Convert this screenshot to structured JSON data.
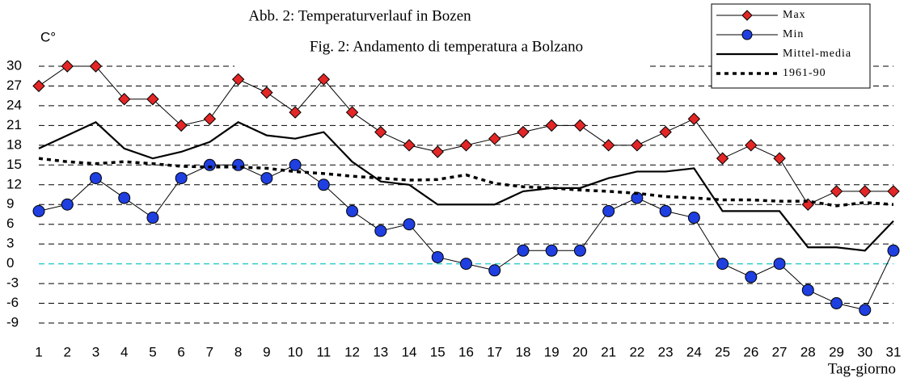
{
  "chart_data": {
    "type": "line",
    "title": "Abb. 2: Temperaturverlauf in Bozen",
    "subtitle": "Fig. 2: Andamento di temperatura a Bolzano",
    "y_label": "C°",
    "x_label": "Tag-giorno",
    "x": [
      1,
      2,
      3,
      4,
      5,
      6,
      7,
      8,
      9,
      10,
      11,
      12,
      13,
      14,
      15,
      16,
      17,
      18,
      19,
      20,
      21,
      22,
      23,
      24,
      25,
      26,
      27,
      28,
      29,
      30,
      31
    ],
    "xlim": [
      1,
      31
    ],
    "xticks": [
      1,
      2,
      3,
      4,
      5,
      6,
      7,
      8,
      9,
      10,
      11,
      12,
      13,
      14,
      15,
      16,
      17,
      18,
      19,
      20,
      21,
      22,
      23,
      24,
      25,
      26,
      27,
      28,
      29,
      30,
      31
    ],
    "ylim": [
      -9,
      30
    ],
    "yticks": [
      -9,
      -6,
      -3,
      0,
      3,
      6,
      9,
      12,
      15,
      18,
      21,
      24,
      27,
      30
    ],
    "grid": true,
    "grid_color": "#000000",
    "zero_line_color": "#33cccc",
    "legend": "top-right",
    "series": [
      {
        "name": "Max",
        "color": "#e32626",
        "line_color": "#000000",
        "marker": "diamond",
        "style": "solid",
        "values": [
          27,
          30,
          30,
          25,
          25,
          21,
          22,
          28,
          26,
          23,
          28,
          23,
          20,
          18,
          17,
          18,
          19,
          20,
          21,
          21,
          18,
          18,
          20,
          22,
          16,
          18,
          16,
          9,
          11,
          11,
          11
        ]
      },
      {
        "name": "Min",
        "color": "#1f3fe0",
        "line_color": "#000000",
        "marker": "circle",
        "style": "solid",
        "values": [
          8,
          9,
          13,
          10,
          7,
          13,
          15,
          15,
          13,
          15,
          12,
          8,
          5,
          6,
          1,
          0,
          -1,
          2,
          2,
          2,
          8,
          10,
          8,
          7,
          0,
          -2,
          0,
          -4,
          -6,
          -7,
          2
        ]
      },
      {
        "name": "Mittel-media",
        "color": "#000000",
        "line_color": "#000000",
        "marker": "none",
        "style": "thick",
        "values": [
          17.5,
          19.5,
          21.5,
          17.5,
          16,
          17,
          18.5,
          21.5,
          19.5,
          19,
          20,
          15.5,
          12.5,
          12,
          9,
          9,
          9,
          11,
          11.5,
          11.5,
          13,
          14,
          14,
          14.5,
          8,
          8,
          8,
          2.5,
          2.5,
          2,
          6.5
        ]
      },
      {
        "name": "1961-90",
        "color": "#000000",
        "line_color": "#000000",
        "marker": "none",
        "style": "dotted",
        "values": [
          16,
          15.5,
          15.2,
          15.5,
          15.2,
          14.8,
          14.7,
          14.7,
          14.5,
          14,
          13.7,
          13.3,
          13,
          12.7,
          12.8,
          13.5,
          12.2,
          11.7,
          11.5,
          11.2,
          11,
          10.7,
          10.2,
          10,
          9.7,
          9.7,
          9.5,
          9.5,
          8.8,
          9.3,
          9
        ]
      }
    ]
  }
}
